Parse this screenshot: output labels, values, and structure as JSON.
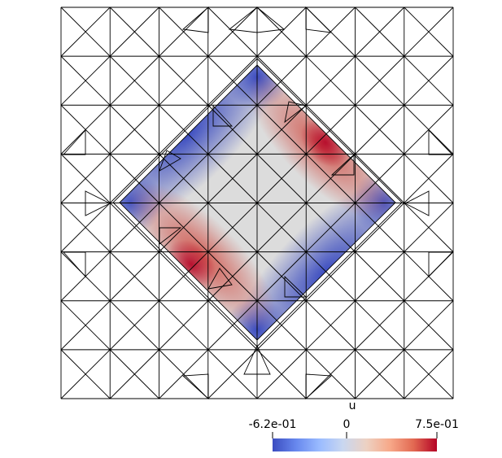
{
  "scalar_bar": {
    "title": "u",
    "min_label": "-6.2e-01",
    "mid_label": "0",
    "max_label": "7.5e-01",
    "min_value": -0.62,
    "mid_value": 0,
    "max_value": 0.75,
    "colormap": [
      "#3b4cc0",
      "#6788ee",
      "#9abbff",
      "#c9d7f0",
      "#edd1c2",
      "#f7a889",
      "#e26952",
      "#b40426"
    ]
  },
  "mesh": {
    "grid_cells": 8,
    "line_color": "#000000",
    "region_shape": "rotated-square",
    "field_low_color": "#3b4cc0",
    "field_mid_color": "#dddcdc",
    "field_high_color": "#b40426"
  }
}
